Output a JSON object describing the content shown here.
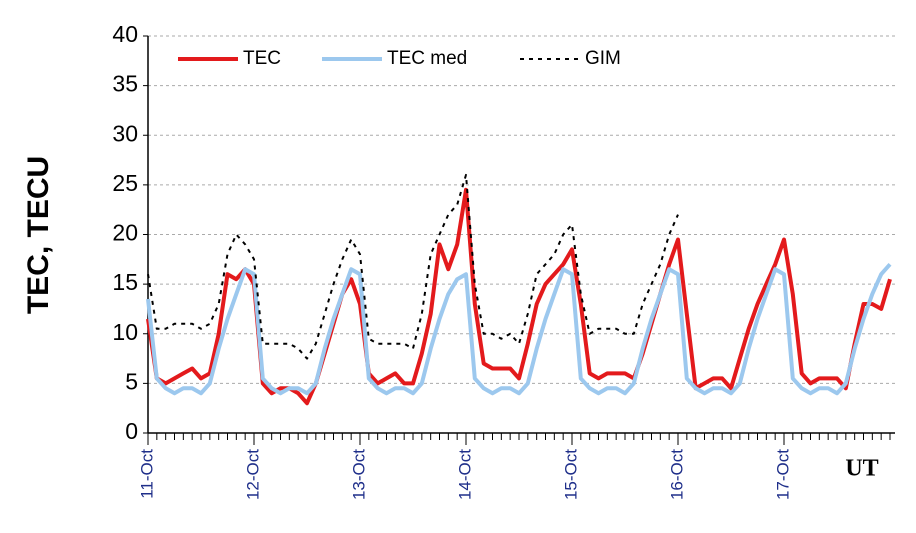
{
  "chart_data": {
    "type": "line",
    "y_label": "TEC, TECU",
    "x_label": "UT",
    "categories": [
      "11-Oct",
      null,
      null,
      null,
      null,
      null,
      null,
      null,
      null,
      null,
      null,
      null,
      "12-Oct",
      null,
      null,
      null,
      null,
      null,
      null,
      null,
      null,
      null,
      null,
      null,
      "13-Oct",
      null,
      null,
      null,
      null,
      null,
      null,
      null,
      null,
      null,
      null,
      null,
      "14-Oct",
      null,
      null,
      null,
      null,
      null,
      null,
      null,
      null,
      null,
      null,
      null,
      "15-Oct",
      null,
      null,
      null,
      null,
      null,
      null,
      null,
      null,
      null,
      null,
      null,
      "16-Oct",
      null,
      null,
      null,
      null,
      null,
      null,
      null,
      null,
      null,
      null,
      null,
      "17-Oct",
      null,
      null,
      null,
      null,
      null,
      null,
      null,
      null,
      null,
      null,
      null,
      null
    ],
    "series": [
      {
        "name": "TEC",
        "color": "#e31a1c",
        "width": 4,
        "dash": null,
        "values": [
          11.5,
          5.5,
          5,
          5.5,
          6,
          6.5,
          5.5,
          6,
          10,
          16,
          15.5,
          16.5,
          15,
          5,
          4,
          4.5,
          4.5,
          4,
          3,
          5,
          8,
          11,
          14,
          15.5,
          13,
          6,
          5,
          5.5,
          6,
          5,
          5,
          8,
          12,
          19,
          16.5,
          19,
          24.5,
          13,
          7,
          6.5,
          6.5,
          6.5,
          5.5,
          9,
          13,
          15,
          16,
          17,
          18.5,
          13,
          6,
          5.5,
          6,
          6,
          6,
          5.5,
          8,
          11,
          14,
          17,
          19.5,
          12,
          4.5,
          5,
          5.5,
          5.5,
          4.5,
          7.5,
          10.5,
          13,
          15,
          17,
          19.5,
          14,
          6,
          5,
          5.5,
          5.5,
          5.5,
          4.5,
          9,
          13,
          13,
          12.5,
          15.5
        ]
      },
      {
        "name": "TEC med",
        "color": "#9cc8ee",
        "width": 4,
        "dash": null,
        "values": [
          13.5,
          5.5,
          4.5,
          4,
          4.5,
          4.5,
          4,
          5,
          8.5,
          11.5,
          14,
          16.5,
          16,
          5.5,
          4.5,
          4,
          4.5,
          4.5,
          4,
          5,
          8.5,
          11.5,
          14,
          16.5,
          16,
          5.5,
          4.5,
          4,
          4.5,
          4.5,
          4,
          5,
          8.5,
          11.5,
          14,
          15.5,
          16,
          5.5,
          4.5,
          4,
          4.5,
          4.5,
          4,
          5,
          8.5,
          11.5,
          14,
          16.5,
          16,
          5.5,
          4.5,
          4,
          4.5,
          4.5,
          4,
          5,
          8.5,
          11.5,
          14,
          16.5,
          16,
          5.5,
          4.5,
          4,
          4.5,
          4.5,
          4,
          5,
          8.5,
          11.5,
          14,
          16.5,
          16,
          5.5,
          4.5,
          4,
          4.5,
          4.5,
          4,
          5,
          8.5,
          11.5,
          14,
          16,
          17
        ]
      },
      {
        "name": "GIM",
        "color": "#000000",
        "width": 2,
        "dash": "4 5",
        "values": [
          16,
          10.5,
          10.5,
          11,
          11,
          11,
          10.5,
          11,
          13,
          18,
          20,
          19,
          17.5,
          9,
          9,
          9,
          9,
          8.5,
          7.5,
          9,
          12,
          15,
          17.5,
          19.5,
          18,
          9.5,
          9,
          9,
          9,
          9,
          8.5,
          12,
          18,
          20,
          22,
          23,
          26,
          15,
          10,
          10,
          9.5,
          10,
          9,
          12,
          16,
          17,
          18,
          20,
          21,
          14,
          10,
          10.5,
          10.5,
          10.5,
          10,
          10,
          13,
          15,
          17,
          20,
          22,
          null,
          null,
          null,
          null,
          null,
          null,
          null,
          null,
          null,
          null,
          null,
          null,
          null,
          null,
          null,
          null,
          null,
          null,
          null,
          null,
          null,
          null,
          null,
          null
        ]
      }
    ],
    "ylim": [
      0,
      40
    ],
    "yticks": [
      0,
      5,
      10,
      15,
      20,
      25,
      30,
      35,
      40
    ],
    "grid": true,
    "legend": "top-left"
  }
}
